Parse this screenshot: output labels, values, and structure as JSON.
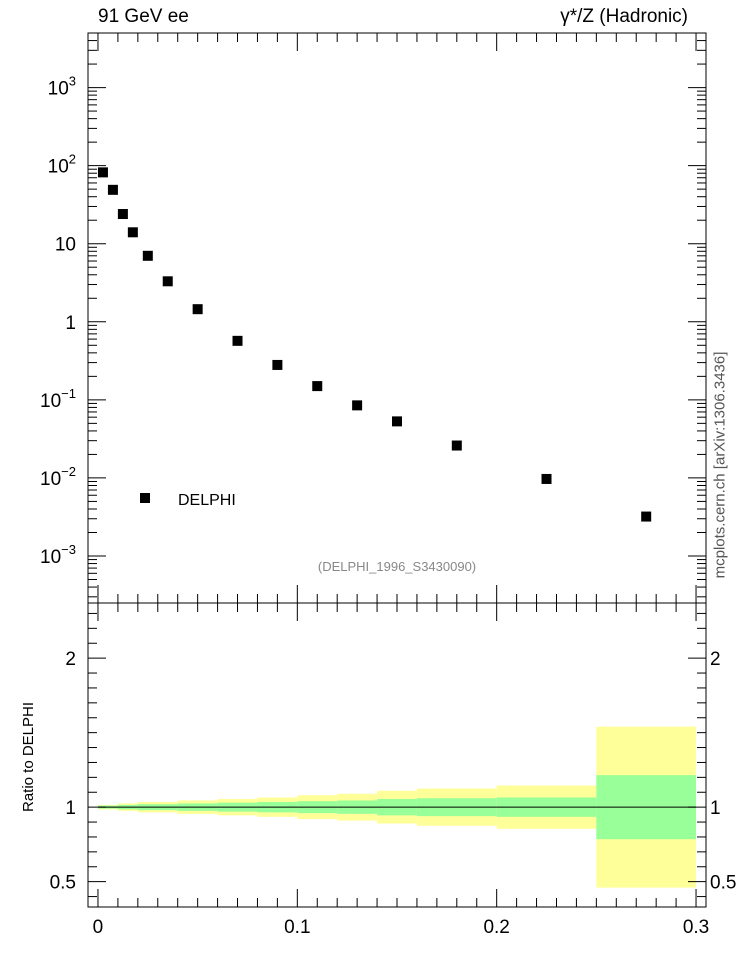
{
  "header": {
    "left": "91 GeV ee",
    "right": "γ*/Z (Hadronic)"
  },
  "side_note": "mcplots.cern.ch [arXiv:1306.3436]",
  "colors": {
    "marker": "#000000",
    "band_inner": "#99ff99",
    "band_outer": "#ffff99",
    "axis": "#000000",
    "analysis_label": "#888888",
    "side_note": "#555555"
  },
  "chart_data": [
    {
      "type": "scatter",
      "panel": "main",
      "yscale": "log",
      "xlim": [
        -0.005,
        0.305
      ],
      "ylim": [
        0.00025,
        5000
      ],
      "y_tick_labels": [
        {
          "v": 0.001,
          "base": "10",
          "exp": "−3"
        },
        {
          "v": 0.01,
          "base": "10",
          "exp": "−2"
        },
        {
          "v": 0.1,
          "base": "10",
          "exp": "−1"
        },
        {
          "v": 1,
          "base": "1",
          "exp": ""
        },
        {
          "v": 10,
          "base": "10",
          "exp": ""
        },
        {
          "v": 100,
          "base": "10",
          "exp": "2"
        },
        {
          "v": 1000,
          "base": "10",
          "exp": "3"
        }
      ],
      "legend": {
        "label": "DELPHI",
        "placement": "bottom-left"
      },
      "annotation": "(DELPHI_1996_S3430090)",
      "series": [
        {
          "name": "DELPHI",
          "x": [
            0.0025,
            0.0075,
            0.0125,
            0.0175,
            0.025,
            0.035,
            0.05,
            0.07,
            0.09,
            0.11,
            0.13,
            0.15,
            0.18,
            0.225,
            0.275
          ],
          "y": [
            82,
            49,
            24,
            14,
            7,
            3.3,
            1.45,
            0.57,
            0.28,
            0.15,
            0.085,
            0.053,
            0.026,
            0.0097,
            0.0032
          ]
        }
      ]
    },
    {
      "type": "area",
      "panel": "ratio",
      "ylabel": "Ratio to DELPHI",
      "xlim": [
        -0.005,
        0.305
      ],
      "ylim": [
        0.33,
        2.37
      ],
      "x_ticks": [
        0,
        0.1,
        0.2,
        0.3
      ],
      "x_tick_labels": [
        "0",
        "0.1",
        "0.2",
        "0.3"
      ],
      "y_ticks": [
        0.5,
        1,
        2
      ],
      "y_tick_labels": [
        "0.5",
        "1",
        "2"
      ],
      "reference_line": 1,
      "bins": [
        {
          "lo": 0.0,
          "hi": 0.01,
          "inner": [
            0.99,
            1.01
          ],
          "outer": [
            0.985,
            1.015
          ]
        },
        {
          "lo": 0.01,
          "hi": 0.02,
          "inner": [
            0.985,
            1.015
          ],
          "outer": [
            0.975,
            1.025
          ]
        },
        {
          "lo": 0.02,
          "hi": 0.04,
          "inner": [
            0.98,
            1.02
          ],
          "outer": [
            0.965,
            1.035
          ]
        },
        {
          "lo": 0.04,
          "hi": 0.06,
          "inner": [
            0.975,
            1.025
          ],
          "outer": [
            0.955,
            1.045
          ]
        },
        {
          "lo": 0.06,
          "hi": 0.08,
          "inner": [
            0.97,
            1.03
          ],
          "outer": [
            0.945,
            1.055
          ]
        },
        {
          "lo": 0.08,
          "hi": 0.1,
          "inner": [
            0.965,
            1.035
          ],
          "outer": [
            0.935,
            1.065
          ]
        },
        {
          "lo": 0.1,
          "hi": 0.12,
          "inner": [
            0.96,
            1.04
          ],
          "outer": [
            0.92,
            1.08
          ]
        },
        {
          "lo": 0.12,
          "hi": 0.14,
          "inner": [
            0.955,
            1.045
          ],
          "outer": [
            0.91,
            1.09
          ]
        },
        {
          "lo": 0.14,
          "hi": 0.16,
          "inner": [
            0.945,
            1.055
          ],
          "outer": [
            0.89,
            1.11
          ]
        },
        {
          "lo": 0.16,
          "hi": 0.2,
          "inner": [
            0.94,
            1.06
          ],
          "outer": [
            0.875,
            1.125
          ]
        },
        {
          "lo": 0.2,
          "hi": 0.25,
          "inner": [
            0.935,
            1.065
          ],
          "outer": [
            0.855,
            1.145
          ]
        },
        {
          "lo": 0.25,
          "hi": 0.3,
          "inner": [
            0.785,
            1.215
          ],
          "outer": [
            0.46,
            1.54
          ]
        }
      ]
    }
  ]
}
